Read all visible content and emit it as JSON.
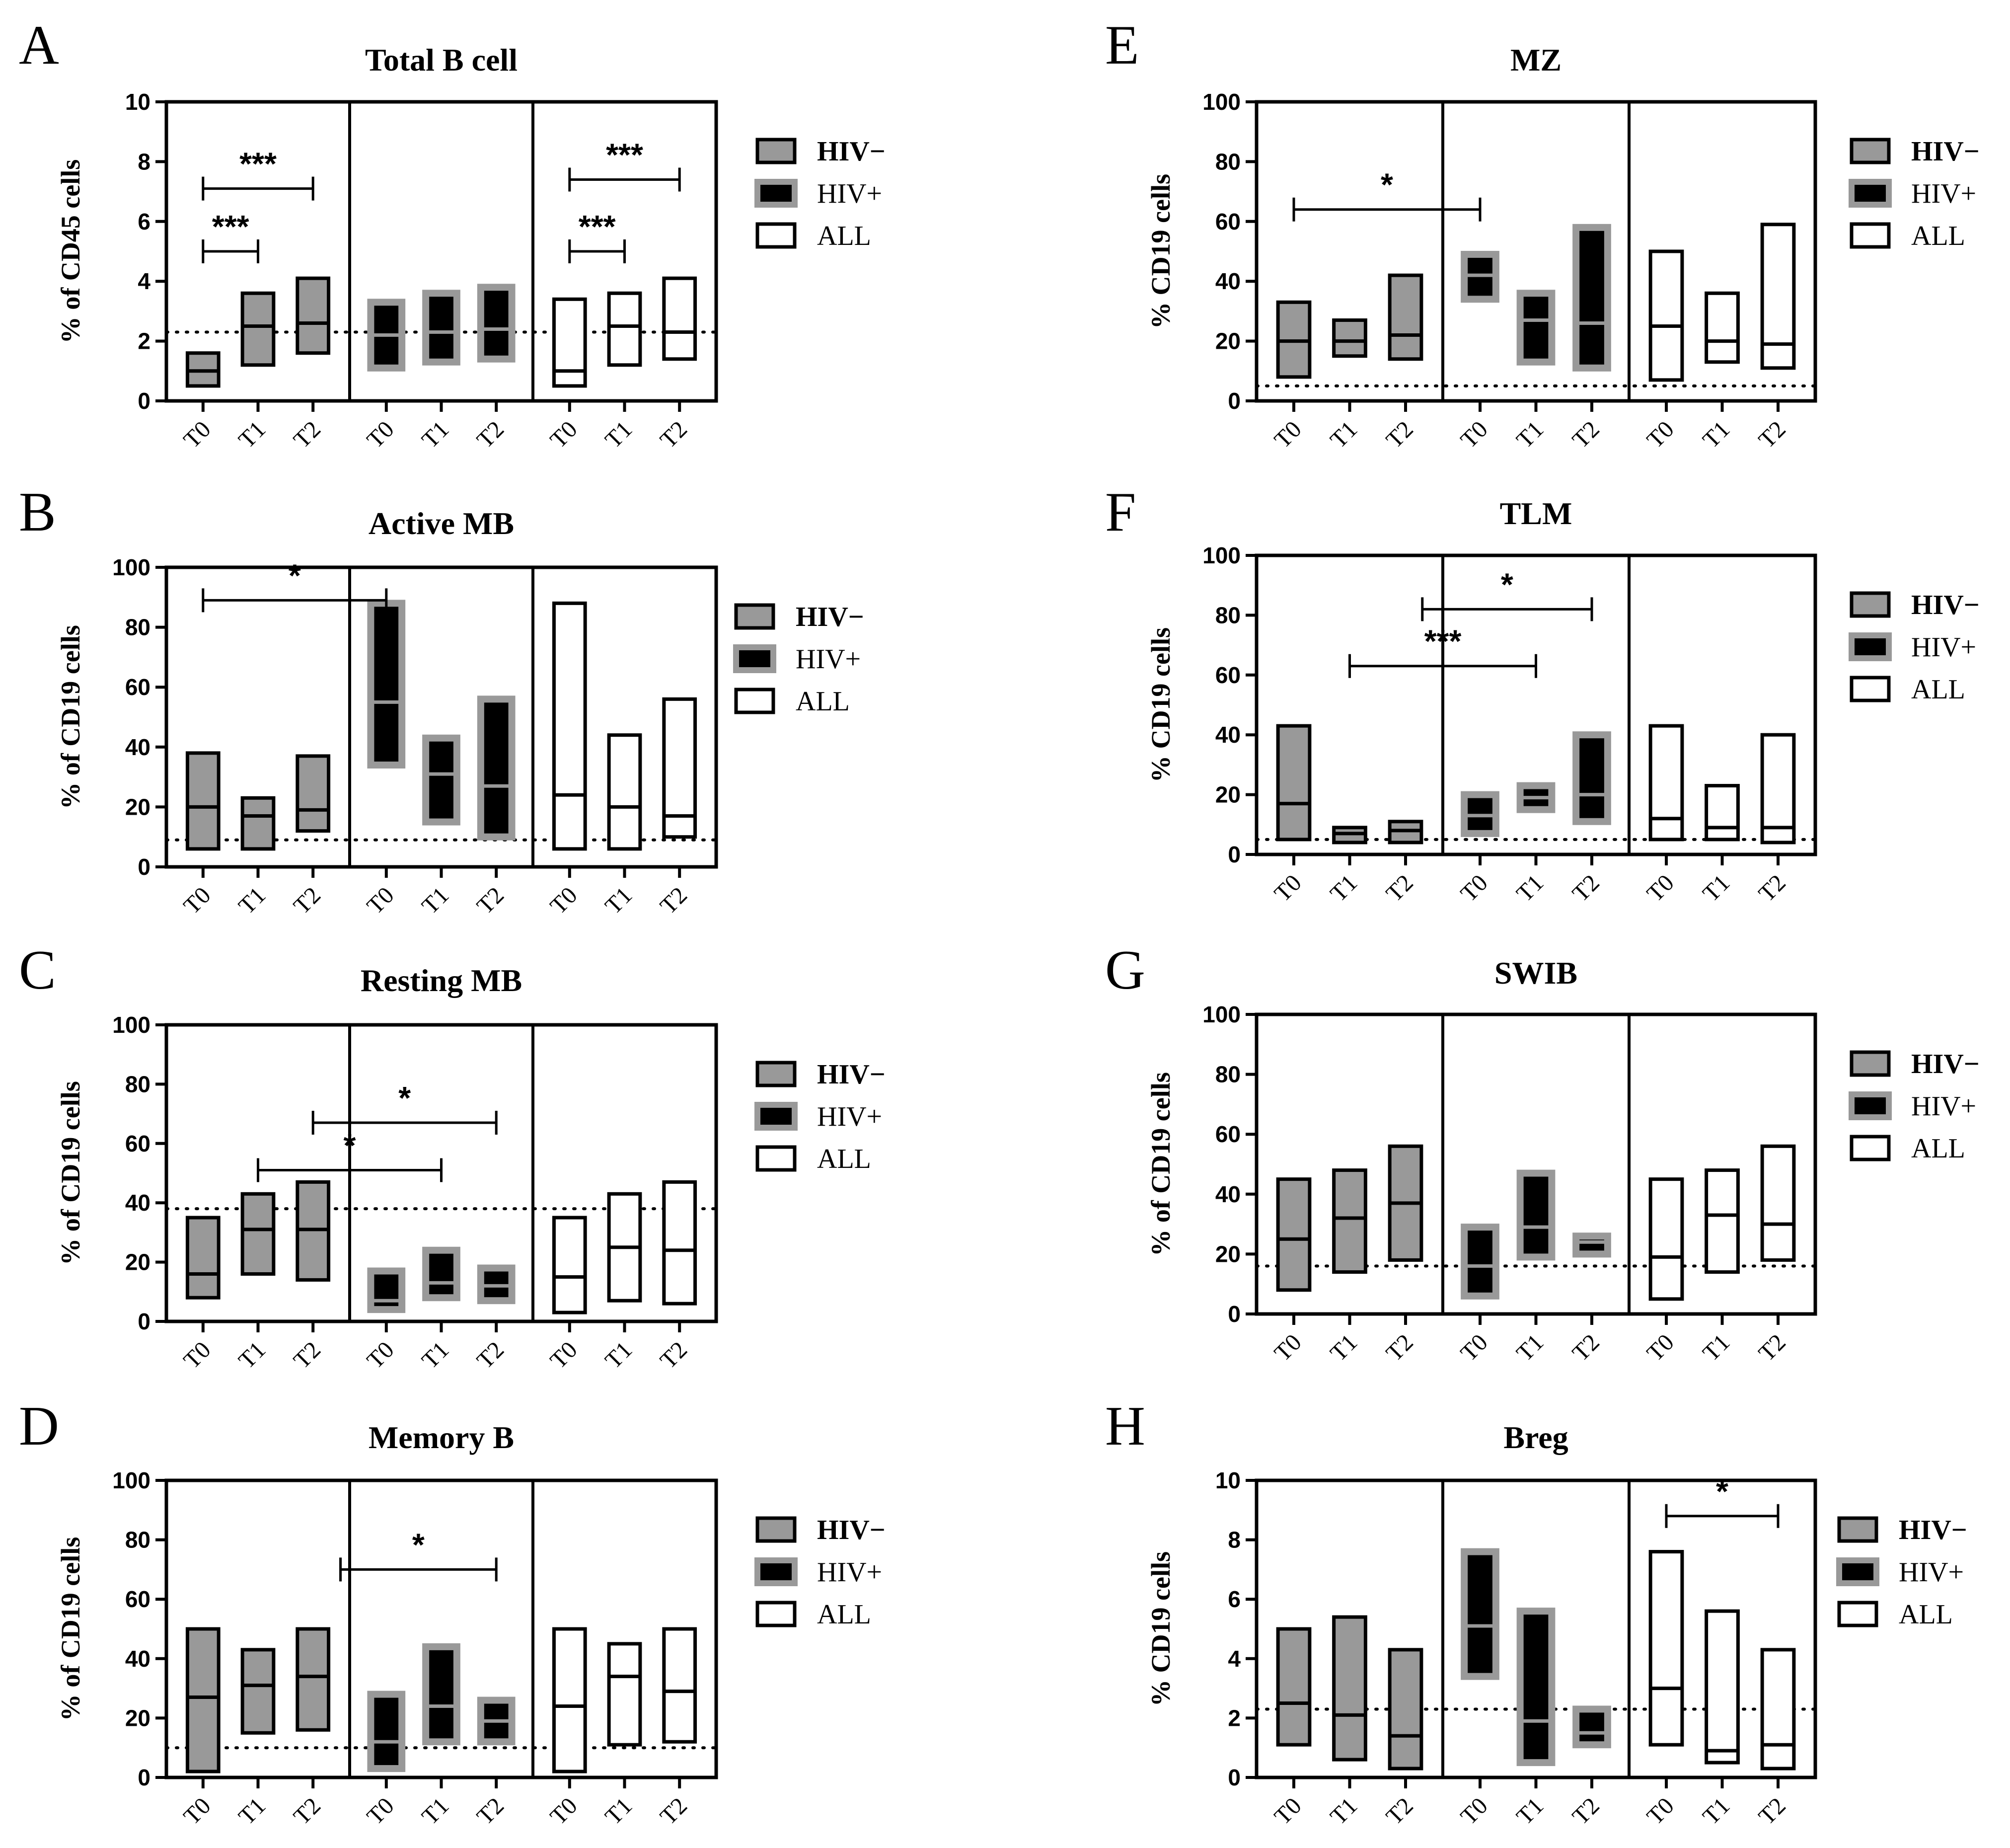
{
  "figure": {
    "legend_labels": [
      "HIV−",
      "HIV+",
      "ALL"
    ],
    "group_colors": {
      "HIV−": "#999999",
      "HIV+": "#000000",
      "ALL": "#ffffff",
      "border_gray": "#999999"
    }
  },
  "chart_data": [
    {
      "panel": "A",
      "title": "Total B cell",
      "type": "floating-bar",
      "ylabel": "% of CD45 cells",
      "ylim": [
        0,
        10
      ],
      "yticks": [
        "0",
        "2",
        "4",
        "6",
        "8",
        "10"
      ],
      "xticklabels": [
        "T0",
        "T1",
        "T2"
      ],
      "ref_line": 2.3,
      "series": [
        {
          "name": "HIV−",
          "bars": [
            {
              "x": "T0",
              "min": 0.5,
              "max": 1.6,
              "median": 1.0
            },
            {
              "x": "T1",
              "min": 1.2,
              "max": 3.6,
              "median": 2.5
            },
            {
              "x": "T2",
              "min": 1.6,
              "max": 4.1,
              "median": 2.6
            }
          ]
        },
        {
          "name": "HIV+",
          "bars": [
            {
              "x": "T0",
              "min": 1.1,
              "max": 3.3,
              "median": 2.2
            },
            {
              "x": "T1",
              "min": 1.3,
              "max": 3.6,
              "median": 2.3
            },
            {
              "x": "T2",
              "min": 1.4,
              "max": 3.8,
              "median": 2.4
            }
          ]
        },
        {
          "name": "ALL",
          "bars": [
            {
              "x": "T0",
              "min": 0.5,
              "max": 3.4,
              "median": 1.0
            },
            {
              "x": "T1",
              "min": 1.2,
              "max": 3.6,
              "median": 2.5
            },
            {
              "x": "T2",
              "min": 1.4,
              "max": 4.1,
              "median": 2.3
            }
          ]
        }
      ],
      "significance": [
        {
          "from_group": 0,
          "from_x": 0,
          "to_group": 0,
          "to_x": 1,
          "y": 5.0,
          "label": "***"
        },
        {
          "from_group": 0,
          "from_x": 0,
          "to_group": 0,
          "to_x": 2,
          "y": 7.1,
          "label": "***"
        },
        {
          "from_group": 2,
          "from_x": 0,
          "to_group": 2,
          "to_x": 1,
          "y": 5.0,
          "label": "***"
        },
        {
          "from_group": 2,
          "from_x": 0,
          "to_group": 2,
          "to_x": 2,
          "y": 7.4,
          "label": "***"
        }
      ]
    },
    {
      "panel": "B",
      "title": "Active MB",
      "type": "floating-bar",
      "ylabel": "% of CD19 cells",
      "ylim": [
        0,
        100
      ],
      "yticks": [
        "0",
        "20",
        "40",
        "60",
        "80",
        "100"
      ],
      "xticklabels": [
        "T0",
        "T1",
        "T2"
      ],
      "ref_line": 9,
      "series": [
        {
          "name": "HIV−",
          "bars": [
            {
              "x": "T0",
              "min": 6,
              "max": 38,
              "median": 20
            },
            {
              "x": "T1",
              "min": 6,
              "max": 23,
              "median": 17
            },
            {
              "x": "T2",
              "min": 12,
              "max": 37,
              "median": 19
            }
          ]
        },
        {
          "name": "HIV+",
          "bars": [
            {
              "x": "T0",
              "min": 34,
              "max": 88,
              "median": 55
            },
            {
              "x": "T1",
              "min": 15,
              "max": 43,
              "median": 31
            },
            {
              "x": "T2",
              "min": 10,
              "max": 56,
              "median": 27
            }
          ]
        },
        {
          "name": "ALL",
          "bars": [
            {
              "x": "T0",
              "min": 6,
              "max": 88,
              "median": 24
            },
            {
              "x": "T1",
              "min": 6,
              "max": 44,
              "median": 20
            },
            {
              "x": "T2",
              "min": 10,
              "max": 56,
              "median": 17
            }
          ]
        }
      ],
      "significance": [
        {
          "from_group": 0,
          "from_x": 0,
          "to_group": 1,
          "to_x": 0,
          "y": 89,
          "label": "*"
        }
      ]
    },
    {
      "panel": "C",
      "title": "Resting MB",
      "type": "floating-bar",
      "ylabel": "% of CD19 cells",
      "ylim": [
        0,
        100
      ],
      "yticks": [
        "0",
        "20",
        "40",
        "60",
        "80",
        "100"
      ],
      "xticklabels": [
        "T0",
        "T1",
        "T2"
      ],
      "ref_line": 38,
      "series": [
        {
          "name": "HIV−",
          "bars": [
            {
              "x": "T0",
              "min": 8,
              "max": 35,
              "median": 16
            },
            {
              "x": "T1",
              "min": 16,
              "max": 43,
              "median": 31
            },
            {
              "x": "T2",
              "min": 14,
              "max": 47,
              "median": 31
            }
          ]
        },
        {
          "name": "HIV+",
          "bars": [
            {
              "x": "T0",
              "min": 4,
              "max": 17,
              "median": 7
            },
            {
              "x": "T1",
              "min": 8,
              "max": 24,
              "median": 13
            },
            {
              "x": "T2",
              "min": 7,
              "max": 18,
              "median": 12
            }
          ]
        },
        {
          "name": "ALL",
          "bars": [
            {
              "x": "T0",
              "min": 3,
              "max": 35,
              "median": 15
            },
            {
              "x": "T1",
              "min": 7,
              "max": 43,
              "median": 25
            },
            {
              "x": "T2",
              "min": 6,
              "max": 47,
              "median": 24
            }
          ]
        }
      ],
      "significance": [
        {
          "from_group": 0,
          "from_x": 1,
          "to_group": 1,
          "to_x": 1,
          "y": 51,
          "label": "*"
        },
        {
          "from_group": 0,
          "from_x": 2,
          "to_group": 1,
          "to_x": 2,
          "y": 67,
          "label": "*"
        }
      ]
    },
    {
      "panel": "D",
      "title": "Memory B",
      "type": "floating-bar",
      "ylabel": "% of CD19 cells",
      "ylim": [
        0,
        100
      ],
      "yticks": [
        "0",
        "20",
        "40",
        "60",
        "80",
        "100"
      ],
      "xticklabels": [
        "T0",
        "T1",
        "T2"
      ],
      "ref_line": 10,
      "series": [
        {
          "name": "HIV−",
          "bars": [
            {
              "x": "T0",
              "min": 2,
              "max": 50,
              "median": 27
            },
            {
              "x": "T1",
              "min": 15,
              "max": 43,
              "median": 31
            },
            {
              "x": "T2",
              "min": 16,
              "max": 50,
              "median": 34
            }
          ]
        },
        {
          "name": "HIV+",
          "bars": [
            {
              "x": "T0",
              "min": 3,
              "max": 28,
              "median": 12
            },
            {
              "x": "T1",
              "min": 12,
              "max": 44,
              "median": 24
            },
            {
              "x": "T2",
              "min": 12,
              "max": 26,
              "median": 19
            }
          ]
        },
        {
          "name": "ALL",
          "bars": [
            {
              "x": "T0",
              "min": 2,
              "max": 50,
              "median": 24
            },
            {
              "x": "T1",
              "min": 11,
              "max": 45,
              "median": 34
            },
            {
              "x": "T2",
              "min": 12,
              "max": 50,
              "median": 29
            }
          ]
        }
      ],
      "significance": [
        {
          "from_group": 0,
          "from_x": 2.5,
          "to_group": 1,
          "to_x": 2,
          "y": 70,
          "label": "*"
        }
      ]
    },
    {
      "panel": "E",
      "title": "MZ",
      "type": "floating-bar",
      "ylabel": "% CD19 cells",
      "ylim": [
        0,
        100
      ],
      "yticks": [
        "0",
        "20",
        "40",
        "60",
        "80",
        "100"
      ],
      "xticklabels": [
        "T0",
        "T1",
        "T2"
      ],
      "ref_line": 5,
      "series": [
        {
          "name": "HIV−",
          "bars": [
            {
              "x": "T0",
              "min": 8,
              "max": 33,
              "median": 20
            },
            {
              "x": "T1",
              "min": 15,
              "max": 27,
              "median": 20
            },
            {
              "x": "T2",
              "min": 14,
              "max": 42,
              "median": 22
            }
          ]
        },
        {
          "name": "HIV+",
          "bars": [
            {
              "x": "T0",
              "min": 34,
              "max": 49,
              "median": 42
            },
            {
              "x": "T1",
              "min": 13,
              "max": 36,
              "median": 27
            },
            {
              "x": "T2",
              "min": 11,
              "max": 58,
              "median": 26
            }
          ]
        },
        {
          "name": "ALL",
          "bars": [
            {
              "x": "T0",
              "min": 7,
              "max": 50,
              "median": 25
            },
            {
              "x": "T1",
              "min": 13,
              "max": 36,
              "median": 20
            },
            {
              "x": "T2",
              "min": 11,
              "max": 59,
              "median": 19
            }
          ]
        }
      ],
      "significance": [
        {
          "from_group": 0,
          "from_x": 0,
          "to_group": 1,
          "to_x": 0,
          "y": 64,
          "label": "*"
        }
      ]
    },
    {
      "panel": "F",
      "title": "TLM",
      "type": "floating-bar",
      "ylabel": "% CD19 cells",
      "ylim": [
        0,
        100
      ],
      "yticks": [
        "0",
        "20",
        "40",
        "60",
        "80",
        "100"
      ],
      "xticklabels": [
        "T0",
        "T1",
        "T2"
      ],
      "ref_line": 5,
      "series": [
        {
          "name": "HIV−",
          "bars": [
            {
              "x": "T0",
              "min": 5,
              "max": 43,
              "median": 17
            },
            {
              "x": "T1",
              "min": 4,
              "max": 9,
              "median": 7
            },
            {
              "x": "T2",
              "min": 4,
              "max": 11,
              "median": 8
            }
          ]
        },
        {
          "name": "HIV+",
          "bars": [
            {
              "x": "T0",
              "min": 7,
              "max": 20,
              "median": 13
            },
            {
              "x": "T1",
              "min": 15,
              "max": 23,
              "median": 19
            },
            {
              "x": "T2",
              "min": 11,
              "max": 40,
              "median": 20
            }
          ]
        },
        {
          "name": "ALL",
          "bars": [
            {
              "x": "T0",
              "min": 5,
              "max": 43,
              "median": 12
            },
            {
              "x": "T1",
              "min": 5,
              "max": 23,
              "median": 9
            },
            {
              "x": "T2",
              "min": 4,
              "max": 40,
              "median": 9
            }
          ]
        }
      ],
      "significance": [
        {
          "from_group": 0,
          "from_x": 1,
          "to_group": 1,
          "to_x": 1,
          "y": 63,
          "label": "***"
        },
        {
          "from_group": 0,
          "from_x": 2.3,
          "to_group": 1,
          "to_x": 2,
          "y": 82,
          "label": "*"
        }
      ]
    },
    {
      "panel": "G",
      "title": "SWIB",
      "type": "floating-bar",
      "ylabel": "% of CD19 cells",
      "ylim": [
        0,
        100
      ],
      "yticks": [
        "0",
        "20",
        "40",
        "60",
        "80",
        "100"
      ],
      "xticklabels": [
        "T0",
        "T1",
        "T2"
      ],
      "ref_line": 16,
      "series": [
        {
          "name": "HIV−",
          "bars": [
            {
              "x": "T0",
              "min": 8,
              "max": 45,
              "median": 25
            },
            {
              "x": "T1",
              "min": 14,
              "max": 48,
              "median": 32
            },
            {
              "x": "T2",
              "min": 18,
              "max": 56,
              "median": 37
            }
          ]
        },
        {
          "name": "HIV+",
          "bars": [
            {
              "x": "T0",
              "min": 6,
              "max": 29,
              "median": 16
            },
            {
              "x": "T1",
              "min": 19,
              "max": 47,
              "median": 29
            },
            {
              "x": "T2",
              "min": 20,
              "max": 26,
              "median": 24
            }
          ]
        },
        {
          "name": "ALL",
          "bars": [
            {
              "x": "T0",
              "min": 5,
              "max": 45,
              "median": 19
            },
            {
              "x": "T1",
              "min": 14,
              "max": 48,
              "median": 33
            },
            {
              "x": "T2",
              "min": 18,
              "max": 56,
              "median": 30
            }
          ]
        }
      ],
      "significance": []
    },
    {
      "panel": "H",
      "title": "Breg",
      "type": "floating-bar",
      "ylabel": "% CD19 cells",
      "ylim": [
        0,
        10
      ],
      "yticks": [
        "0",
        "2",
        "4",
        "6",
        "8",
        "10"
      ],
      "xticklabels": [
        "T0",
        "T1",
        "T2"
      ],
      "ref_line": 2.3,
      "series": [
        {
          "name": "HIV−",
          "bars": [
            {
              "x": "T0",
              "min": 1.1,
              "max": 5.0,
              "median": 2.5
            },
            {
              "x": "T1",
              "min": 0.6,
              "max": 5.4,
              "median": 2.1
            },
            {
              "x": "T2",
              "min": 0.3,
              "max": 4.3,
              "median": 1.4
            }
          ]
        },
        {
          "name": "HIV+",
          "bars": [
            {
              "x": "T0",
              "min": 3.4,
              "max": 7.6,
              "median": 5.1
            },
            {
              "x": "T1",
              "min": 0.5,
              "max": 5.6,
              "median": 1.9
            },
            {
              "x": "T2",
              "min": 1.1,
              "max": 2.3,
              "median": 1.5
            }
          ]
        },
        {
          "name": "ALL",
          "bars": [
            {
              "x": "T0",
              "min": 1.1,
              "max": 7.6,
              "median": 3.0
            },
            {
              "x": "T1",
              "min": 0.5,
              "max": 5.6,
              "median": 0.9
            },
            {
              "x": "T2",
              "min": 0.3,
              "max": 4.3,
              "median": 1.1
            }
          ]
        }
      ],
      "significance": [
        {
          "from_group": 2,
          "from_x": 0,
          "to_group": 2,
          "to_x": 2,
          "y": 8.8,
          "label": "*"
        }
      ]
    }
  ]
}
